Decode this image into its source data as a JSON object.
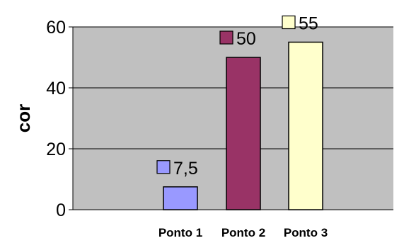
{
  "chart_data": {
    "type": "bar",
    "categories": [
      "Ponto 1",
      "Ponto 2",
      "Ponto 3"
    ],
    "values": [
      7.5,
      50,
      55
    ],
    "value_labels": [
      "7,5",
      "50",
      "55"
    ],
    "ylabel": "cor",
    "ylim": [
      0,
      60
    ],
    "yticks": [
      0,
      20,
      40,
      60
    ],
    "ytick_labels": [
      "0",
      "20",
      "40",
      "60"
    ],
    "grid": true,
    "colors": [
      "#9999ff",
      "#993366",
      "#ffffcc"
    ],
    "plot_background": "#c0c0c0"
  }
}
